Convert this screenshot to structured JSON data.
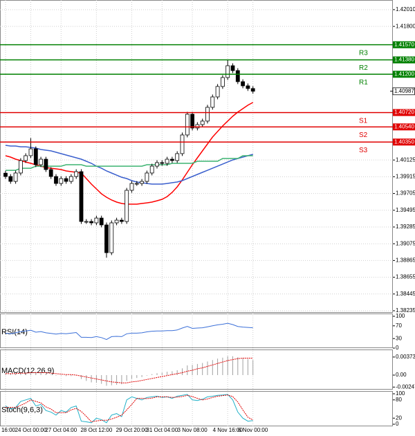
{
  "chart_data": [
    {
      "type": "candlestick",
      "categories": [
        "16:00",
        null,
        null,
        null,
        null,
        "24 Oct 00:00",
        null,
        null,
        null,
        null,
        null,
        "27 Oct 04:00",
        null,
        null,
        null,
        null,
        null,
        null,
        "28 Oct 12:00",
        null,
        null,
        null,
        null,
        null,
        null,
        "29 Oct 20:00",
        null,
        null,
        null,
        null,
        null,
        "31 Oct 04:00",
        null,
        null,
        null,
        null,
        null,
        "3 Nov 08:00",
        null,
        null,
        null,
        null,
        null,
        null,
        "4 Nov 16:00",
        null,
        null,
        null,
        null,
        "6 Nov 00:00"
      ],
      "open": [
        1.3996,
        1.39918,
        1.39857,
        1.39962,
        1.40118,
        1.40179,
        1.40265,
        1.40066,
        1.40135,
        1.40005,
        1.39918,
        1.39831,
        1.39892,
        1.39857,
        1.39918,
        1.39979,
        1.39354,
        1.39354,
        1.39337,
        1.39397,
        1.39311,
        1.38963,
        1.39337,
        1.39371,
        1.39354,
        1.39745,
        1.39831,
        1.39831,
        1.39857,
        1.39962,
        1.40048,
        1.40092,
        1.40083,
        1.40135,
        1.40118,
        1.40205,
        1.40439,
        1.40699,
        1.40526,
        1.40569,
        1.40613,
        1.40786,
        1.40916,
        1.41047,
        1.41159,
        1.41307,
        1.41246,
        1.41107,
        1.41055,
        1.41021
      ],
      "high": [
        1.3999,
        1.39948,
        1.39992,
        1.40148,
        1.40209,
        1.404,
        1.40295,
        1.40165,
        1.40165,
        1.40035,
        1.39948,
        1.39922,
        1.39922,
        1.39948,
        1.40009,
        1.40009,
        1.39384,
        1.39384,
        1.39427,
        1.39427,
        1.39341,
        1.39367,
        1.39401,
        1.39401,
        1.39775,
        1.39861,
        1.39861,
        1.39887,
        1.39992,
        1.40078,
        1.40122,
        1.40122,
        1.40165,
        1.40165,
        1.40235,
        1.40469,
        1.40729,
        1.40729,
        1.40599,
        1.40643,
        1.40816,
        1.40946,
        1.41077,
        1.41189,
        1.4138,
        1.41337,
        1.41276,
        1.41137,
        1.41085,
        1.41051
      ],
      "low": [
        1.39888,
        1.39827,
        1.39827,
        1.39932,
        1.40088,
        1.40149,
        1.40036,
        1.40036,
        1.39975,
        1.39888,
        1.39801,
        1.39801,
        1.39827,
        1.39827,
        1.39888,
        1.39324,
        1.39324,
        1.39307,
        1.39307,
        1.39281,
        1.389,
        1.38933,
        1.39307,
        1.39324,
        1.39324,
        1.39715,
        1.39801,
        1.39801,
        1.39827,
        1.39932,
        1.40018,
        1.40053,
        1.40053,
        1.40088,
        1.40088,
        1.40175,
        1.40409,
        1.40496,
        1.40496,
        1.40539,
        1.40583,
        1.40756,
        1.40886,
        1.41017,
        1.41129,
        1.41216,
        1.41077,
        1.41025,
        1.40991,
        1.40957
      ],
      "close": [
        1.39918,
        1.39857,
        1.39962,
        1.40118,
        1.40179,
        1.40265,
        1.40066,
        1.40135,
        1.40005,
        1.39918,
        1.39831,
        1.39892,
        1.39857,
        1.39918,
        1.39979,
        1.39354,
        1.39354,
        1.39337,
        1.39397,
        1.39311,
        1.38963,
        1.39337,
        1.39371,
        1.39354,
        1.39745,
        1.39831,
        1.39831,
        1.39857,
        1.39962,
        1.40048,
        1.40092,
        1.40083,
        1.40135,
        1.40118,
        1.40205,
        1.40439,
        1.40699,
        1.40526,
        1.40569,
        1.40613,
        1.40786,
        1.40916,
        1.41047,
        1.41159,
        1.41307,
        1.41246,
        1.41107,
        1.41055,
        1.41021,
        1.40987
      ],
      "up_color": "#ffffff",
      "down_color": "#000000",
      "series": [
        {
          "color": "#ff0000",
          "values": [
            1.40179,
            1.40161,
            1.40135,
            1.40118,
            1.401,
            1.40083,
            1.40066,
            1.40048,
            1.40031,
            1.40022,
            1.40014,
            1.40005,
            1.39988,
            1.39979,
            1.3997,
            1.39962,
            1.39892,
            1.39823,
            1.39762,
            1.39701,
            1.39658,
            1.39623,
            1.39597,
            1.3958,
            1.39571,
            1.39571,
            1.39571,
            1.3958,
            1.39588,
            1.39597,
            1.39614,
            1.39632,
            1.39666,
            1.39719,
            1.39788,
            1.39875,
            1.3997,
            1.40066,
            1.40153,
            1.40239,
            1.40326,
            1.40413,
            1.40482,
            1.40552,
            1.40613,
            1.40673,
            1.40725,
            1.40769,
            1.40812,
            1.40847
          ]
        },
        {
          "color": "#3a5fcd",
          "values": [
            1.40309,
            1.403,
            1.403,
            1.40291,
            1.40291,
            1.40283,
            1.40274,
            1.40257,
            1.40248,
            1.40239,
            1.40222,
            1.40205,
            1.40187,
            1.4017,
            1.40153,
            1.40135,
            1.40109,
            1.40083,
            1.40048,
            1.40022,
            1.39988,
            1.39962,
            1.39935,
            1.39909,
            1.39892,
            1.39866,
            1.39849,
            1.3984,
            1.39831,
            1.39823,
            1.39823,
            1.39823,
            1.39831,
            1.3984,
            1.39849,
            1.39866,
            1.39892,
            1.39918,
            1.39944,
            1.3997,
            1.39996,
            1.40022,
            1.40048,
            1.40074,
            1.401,
            1.40126,
            1.40144,
            1.40161,
            1.40179,
            1.40196
          ]
        },
        {
          "color": "#3cb371",
          "values": [
            1.39996,
            1.39996,
            1.39996,
            1.40022,
            1.40022,
            1.40022,
            1.40048,
            1.40048,
            1.40048,
            1.40048,
            1.40048,
            1.40048,
            1.40066,
            1.40066,
            1.40066,
            1.40066,
            1.40048,
            1.40048,
            1.40048,
            1.40048,
            1.40048,
            1.40048,
            1.40048,
            1.40048,
            1.40048,
            1.40048,
            1.40048,
            1.40048,
            1.40066,
            1.40066,
            1.40066,
            1.40066,
            1.40066,
            1.40083,
            1.40083,
            1.40083,
            1.40083,
            1.40083,
            1.40109,
            1.40109,
            1.40109,
            1.40109,
            1.40109,
            1.40144,
            1.40144,
            1.40144,
            1.40144,
            1.40179,
            1.40179,
            1.40179
          ]
        }
      ],
      "levels": [
        {
          "name": "R3",
          "value": 1.4157,
          "label": "1.41570",
          "color": "#008000"
        },
        {
          "name": "R2",
          "value": 1.4138,
          "label": "1.41380",
          "color": "#008000"
        },
        {
          "name": "R1",
          "value": 1.412,
          "label": "1.41200",
          "color": "#008000"
        },
        {
          "name": "S1",
          "value": 1.4072,
          "label": "1.40720",
          "color": "#e00000"
        },
        {
          "name": "S2",
          "value": 1.4054,
          "label": "1.40540",
          "color": "#e00000"
        },
        {
          "name": "S3",
          "value": 1.4035,
          "label": "1.40350",
          "color": "#e00000"
        }
      ],
      "last_price": 1.40987,
      "ylim": [
        1.38209,
        1.42131
      ],
      "yticks": [
        {
          "value": 1.4201,
          "label": "1.42010"
        },
        {
          "value": 1.418,
          "label": "1.41800"
        },
        1.40125,
        1.39915,
        1.39705,
        1.39495,
        1.39285,
        1.39075,
        1.38865,
        1.38655,
        1.38445,
        1.38235
      ],
      "grid": true
    },
    {
      "type": "line",
      "title": "RSI(14)",
      "series": [
        {
          "color": "#3a6fd8",
          "values": [
            47,
            45,
            48,
            52,
            54,
            56,
            50,
            52,
            48,
            46,
            44,
            46,
            45,
            47,
            49,
            34,
            34,
            33,
            36,
            33,
            27,
            36,
            37,
            36,
            45,
            47,
            47,
            48,
            51,
            53,
            54,
            54,
            55,
            55,
            57,
            63,
            68,
            62,
            63,
            64,
            67,
            70,
            73,
            75,
            78,
            74,
            68,
            66,
            65,
            64
          ]
        }
      ],
      "ylim": [
        0,
        100
      ],
      "yticks": [
        100,
        70,
        30,
        0
      ]
    },
    {
      "type": "macd",
      "title": "MACD(12,26,9)",
      "histogram": [
        0.0004,
        0.0003,
        0.0003,
        0.0005,
        0.0006,
        0.0007,
        0.0005,
        0.0005,
        0.0003,
        0.0001,
        -0.0001,
        -0.0001,
        -0.0002,
        -0.0002,
        -0.0001,
        -0.0008,
        -0.0012,
        -0.0015,
        -0.0016,
        -0.0018,
        -0.0022,
        -0.0021,
        -0.002,
        -0.0019,
        -0.0012,
        -0.0008,
        -0.0006,
        -0.0004,
        -0.0001,
        0.0002,
        0.0004,
        0.0005,
        0.0007,
        0.0008,
        0.001,
        0.0014,
        0.002,
        0.0021,
        0.0023,
        0.0025,
        0.0028,
        0.0031,
        0.0034,
        0.0036,
        0.0039,
        0.0039,
        0.0037,
        0.0035,
        0.0033,
        0.0031
      ],
      "hist_color": "#a0a0a0",
      "signal": [
        0.0003,
        0.0003,
        0.0003,
        0.0004,
        0.0004,
        0.0005,
        0.0005,
        0.0005,
        0.0005,
        0.0004,
        0.0003,
        0.0002,
        0.0001,
        0.0001,
        0,
        -0.0002,
        -0.0004,
        -0.0006,
        -0.0008,
        -0.001,
        -0.0012,
        -0.0014,
        -0.0015,
        -0.0016,
        -0.0016,
        -0.0014,
        -0.0013,
        -0.0011,
        -0.0009,
        -0.0007,
        -0.0005,
        -0.0003,
        -0.0001,
        0.0001,
        0.0003,
        0.0005,
        0.0008,
        0.001,
        0.0013,
        0.0015,
        0.0018,
        0.0021,
        0.0024,
        0.0027,
        0.003,
        0.0032,
        0.0034,
        0.0035,
        0.0035,
        0.0035
      ],
      "signal_color": "#e00000",
      "ylim": [
        -0.003,
        0.005
      ],
      "yticks": [
        0.003731,
        {
          "value": 0,
          "label": "0.00"
        },
        -0.002473
      ]
    },
    {
      "type": "line",
      "title": "Stoch(9,6,3)",
      "series": [
        {
          "color": "#20b0c8",
          "values": [
            60,
            50,
            55,
            75,
            80,
            85,
            60,
            65,
            45,
            40,
            30,
            45,
            40,
            55,
            60,
            10,
            8,
            5,
            20,
            15,
            5,
            30,
            35,
            25,
            80,
            90,
            85,
            80,
            88,
            90,
            92,
            88,
            90,
            85,
            92,
            95,
            98,
            80,
            78,
            82,
            90,
            92,
            95,
            96,
            98,
            80,
            40,
            20,
            10,
            12
          ]
        },
        {
          "color": "#e00000",
          "dashed": true,
          "values": [
            55,
            55,
            55,
            62,
            70,
            80,
            75,
            70,
            57,
            50,
            38,
            38,
            38,
            47,
            52,
            42,
            26,
            8,
            11,
            13,
            13,
            17,
            23,
            30,
            47,
            65,
            85,
            85,
            84,
            86,
            90,
            90,
            90,
            88,
            89,
            91,
            95,
            91,
            85,
            80,
            83,
            88,
            92,
            94,
            96,
            91,
            73,
            47,
            23,
            14
          ]
        }
      ],
      "ylim": [
        0,
        100
      ],
      "yticks": [
        100,
        80,
        20,
        0
      ]
    }
  ]
}
